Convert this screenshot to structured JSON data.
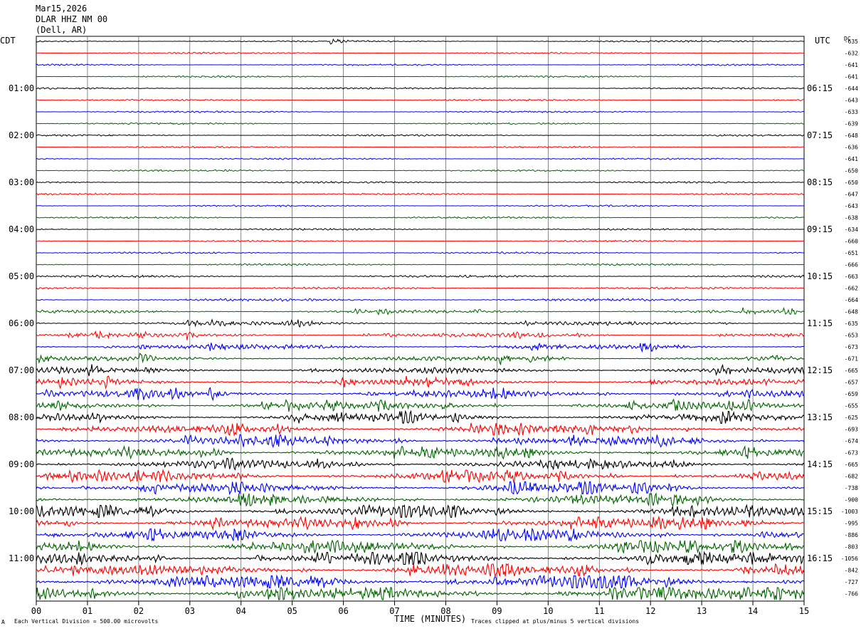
{
  "header": {
    "date": "Mar15,2026",
    "station": "DLAR HHZ NM 00",
    "location": "(Dell, AR)",
    "left_tz": "CDT",
    "right_tz": "UTC",
    "dc_label": "DC"
  },
  "footer": {
    "scale": "Each Vertical Division =  500.00 microvolts",
    "xlabel": "TIME (MINUTES)",
    "clip_note": "Traces clipped at plus/minus 5 vertical divisions",
    "corner_mark": "A"
  },
  "colors": {
    "cycle": [
      "#000000",
      "#ff0000",
      "#0000ff",
      "#006400"
    ],
    "grid": "#000000",
    "background": "#ffffff"
  },
  "chart_data": {
    "type": "line",
    "title": "DLAR HHZ NM 00",
    "xlabel": "TIME (MINUTES)",
    "ylabel": "",
    "xlim": [
      0,
      15
    ],
    "x_ticks": [
      "00",
      "01",
      "02",
      "03",
      "04",
      "05",
      "06",
      "07",
      "08",
      "09",
      "10",
      "11",
      "12",
      "13",
      "14",
      "15"
    ],
    "grid": true,
    "trace_minutes": 15,
    "left_time_labels": [
      {
        "row": 4,
        "label": "01:00"
      },
      {
        "row": 8,
        "label": "02:00"
      },
      {
        "row": 12,
        "label": "03:00"
      },
      {
        "row": 16,
        "label": "04:00"
      },
      {
        "row": 20,
        "label": "05:00"
      },
      {
        "row": 24,
        "label": "06:00"
      },
      {
        "row": 28,
        "label": "07:00"
      },
      {
        "row": 32,
        "label": "08:00"
      },
      {
        "row": 36,
        "label": "09:00"
      },
      {
        "row": 40,
        "label": "10:00"
      },
      {
        "row": 44,
        "label": "11:00"
      }
    ],
    "right_time_labels": [
      {
        "row": 4,
        "label": "06:15"
      },
      {
        "row": 8,
        "label": "07:15"
      },
      {
        "row": 12,
        "label": "08:15"
      },
      {
        "row": 16,
        "label": "09:15"
      },
      {
        "row": 20,
        "label": "10:15"
      },
      {
        "row": 24,
        "label": "11:15"
      },
      {
        "row": 28,
        "label": "12:15"
      },
      {
        "row": 32,
        "label": "13:15"
      },
      {
        "row": 36,
        "label": "14:15"
      },
      {
        "row": 40,
        "label": "15:15"
      },
      {
        "row": 44,
        "label": "16:15"
      }
    ],
    "dc_offsets": [
      -635,
      -632,
      -641,
      -641,
      -644,
      -643,
      -633,
      -639,
      -648,
      -636,
      -641,
      -650,
      -650,
      -647,
      -643,
      -638,
      -634,
      -660,
      -651,
      -666,
      -663,
      -662,
      -664,
      -648,
      -635,
      -653,
      -673,
      -671,
      -665,
      -657,
      -659,
      -655,
      -625,
      -693,
      -674,
      -673,
      -665,
      -682,
      -738,
      -900,
      -1003,
      -995,
      -886,
      -803,
      -1056,
      -842,
      -727,
      -766
    ],
    "activity_level": [
      1.0,
      1.0,
      1.0,
      1.0,
      1.0,
      1.0,
      1.0,
      1.0,
      1.0,
      1.0,
      1.0,
      1.0,
      1.0,
      1.0,
      1.0,
      1.0,
      1.0,
      1.0,
      1.0,
      1.1,
      1.3,
      1.3,
      1.5,
      1.8,
      2.2,
      2.3,
      2.8,
      2.6,
      3.2,
      3.4,
      4.0,
      4.0,
      4.5,
      4.8,
      4.8,
      4.6,
      4.8,
      4.8,
      5.0,
      4.8,
      5.2,
      5.2,
      5.2,
      5.2,
      5.6,
      6.0,
      6.2,
      6.2
    ],
    "events": [
      {
        "row": 0,
        "minute": 5.75,
        "amplitude": 4.5
      }
    ]
  }
}
